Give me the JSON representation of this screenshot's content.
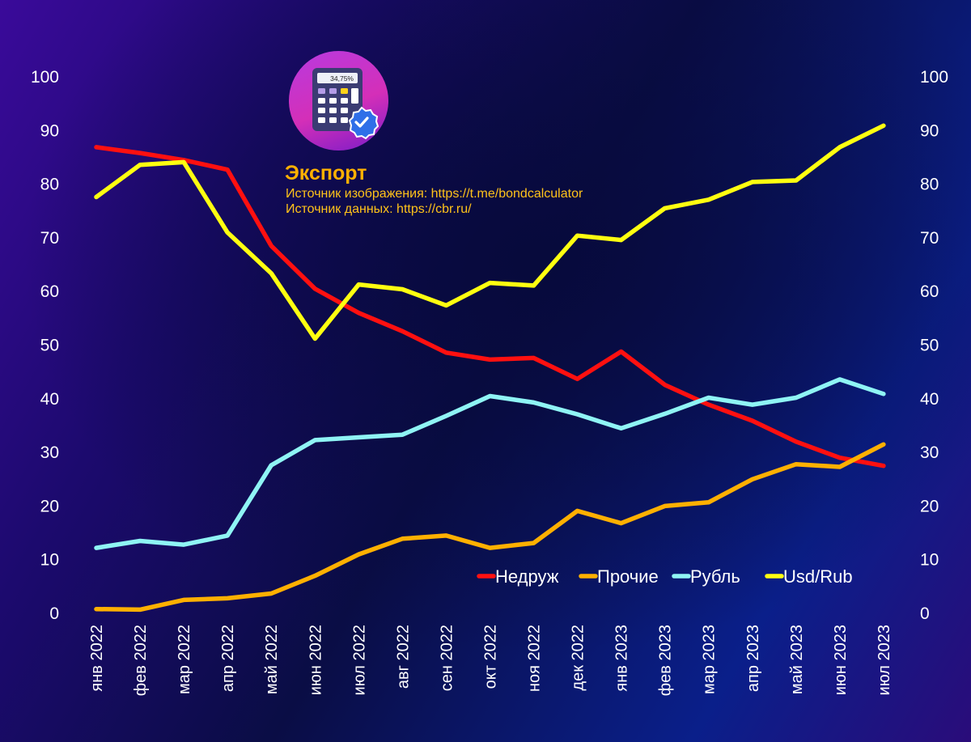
{
  "header": {
    "title": "Экспорт",
    "image_source": "Источник изображения: https://t.me/bondcalculator",
    "data_source": "Источник данных: https://cbr.ru/",
    "logo_screen_text": "34,75%"
  },
  "chart_data": {
    "type": "line",
    "title": "Экспорт",
    "xlabel": "",
    "ylabel": "",
    "ylim": [
      0,
      100
    ],
    "y_ticks": [
      0,
      10,
      20,
      30,
      40,
      50,
      60,
      70,
      80,
      90,
      100
    ],
    "y_ticks_right": [
      0,
      10,
      20,
      30,
      40,
      50,
      60,
      70,
      80,
      90,
      100
    ],
    "legend_position": "lower-right",
    "grid": false,
    "categories": [
      "янв 2022",
      "фев 2022",
      "мар 2022",
      "апр 2022",
      "май 2022",
      "июн 2022",
      "июл 2022",
      "авг 2022",
      "сен 2022",
      "окт 2022",
      "ноя 2022",
      "дек 2022",
      "янв 2023",
      "фев 2023",
      "мар 2023",
      "апр 2023",
      "май 2023",
      "июн 2023",
      "июл 2023"
    ],
    "series": [
      {
        "name": "Недруж",
        "color": "#ff1010",
        "values": [
          86.9,
          85.8,
          84.5,
          82.7,
          68.5,
          60.5,
          56.0,
          52.6,
          48.6,
          47.3,
          47.6,
          43.7,
          48.8,
          42.6,
          38.9,
          35.9,
          32.0,
          29.0,
          27.5
        ]
      },
      {
        "name": "Прочие",
        "color": "#ffb000",
        "values": [
          0.8,
          0.7,
          2.5,
          2.8,
          3.7,
          7.0,
          11.0,
          13.9,
          14.5,
          12.2,
          13.1,
          19.1,
          16.8,
          20.0,
          20.7,
          25.0,
          27.8,
          27.3,
          31.5
        ]
      },
      {
        "name": "Рубль",
        "color": "#8ff4f4",
        "values": [
          12.2,
          13.5,
          12.8,
          14.5,
          27.6,
          32.3,
          32.8,
          33.3,
          36.8,
          40.5,
          39.3,
          37.1,
          34.5,
          37.2,
          40.2,
          38.9,
          40.2,
          43.6,
          40.9
        ]
      },
      {
        "name": "Usd/Rub",
        "color": "#ffff10",
        "values": [
          77.6,
          83.6,
          84.1,
          71.0,
          63.4,
          51.2,
          61.3,
          60.4,
          57.4,
          61.6,
          61.1,
          70.4,
          69.6,
          75.5,
          77.1,
          80.4,
          80.7,
          86.9,
          90.9
        ]
      }
    ]
  }
}
